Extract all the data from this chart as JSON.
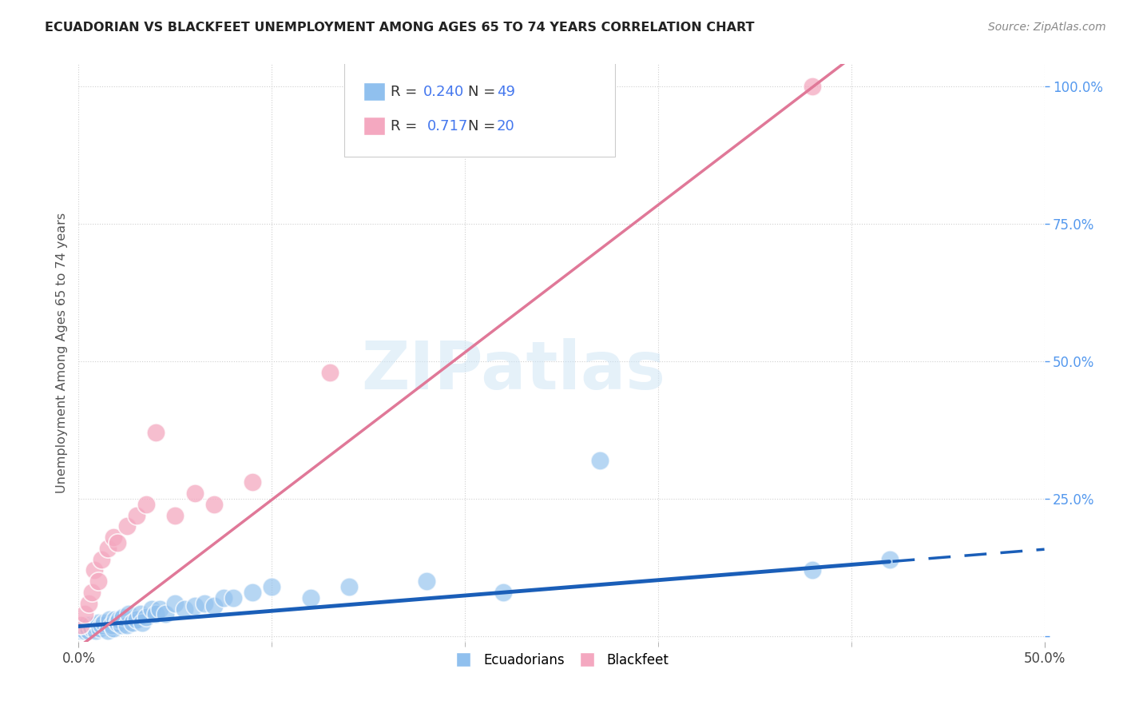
{
  "title": "ECUADORIAN VS BLACKFEET UNEMPLOYMENT AMONG AGES 65 TO 74 YEARS CORRELATION CHART",
  "source": "Source: ZipAtlas.com",
  "ylabel": "Unemployment Among Ages 65 to 74 years",
  "xlabel_ticks": [
    0.0,
    0.5
  ],
  "xlabel_labels": [
    "0.0%",
    "50.0%"
  ],
  "ylabel_right_ticks": [
    0.0,
    0.25,
    0.5,
    0.75,
    1.0
  ],
  "ylabel_right_labels": [
    "",
    "25.0%",
    "50.0%",
    "75.0%",
    "100.0%"
  ],
  "xmin": 0.0,
  "xmax": 0.5,
  "ymin": -0.01,
  "ymax": 1.04,
  "ecuadorians_color": "#90c0ee",
  "blackfeet_color": "#f4a8c0",
  "ecuadorians_R": 0.24,
  "ecuadorians_N": 49,
  "blackfeet_R": 0.717,
  "blackfeet_N": 20,
  "watermark": "ZIPatlas",
  "background_color": "#ffffff",
  "grid_color": "#d0d0d0",
  "blue_line_color": "#1a5eb8",
  "pink_line_color": "#e07898",
  "right_tick_color": "#5599ee",
  "title_color": "#222222",
  "source_color": "#888888",
  "ecuadorians_x": [
    0.001,
    0.002,
    0.003,
    0.004,
    0.005,
    0.006,
    0.007,
    0.008,
    0.009,
    0.01,
    0.011,
    0.012,
    0.013,
    0.015,
    0.016,
    0.017,
    0.018,
    0.019,
    0.02,
    0.021,
    0.022,
    0.023,
    0.025,
    0.026,
    0.028,
    0.03,
    0.032,
    0.033,
    0.035,
    0.038,
    0.04,
    0.042,
    0.045,
    0.05,
    0.055,
    0.06,
    0.065,
    0.07,
    0.075,
    0.08,
    0.09,
    0.1,
    0.12,
    0.14,
    0.18,
    0.22,
    0.27,
    0.38,
    0.42
  ],
  "ecuadorians_y": [
    0.01,
    0.015,
    0.01,
    0.02,
    0.01,
    0.02,
    0.015,
    0.02,
    0.01,
    0.025,
    0.015,
    0.02,
    0.025,
    0.01,
    0.03,
    0.02,
    0.015,
    0.03,
    0.025,
    0.03,
    0.02,
    0.035,
    0.02,
    0.04,
    0.025,
    0.03,
    0.04,
    0.025,
    0.035,
    0.05,
    0.04,
    0.05,
    0.04,
    0.06,
    0.05,
    0.055,
    0.06,
    0.055,
    0.07,
    0.07,
    0.08,
    0.09,
    0.07,
    0.09,
    0.1,
    0.08,
    0.32,
    0.12,
    0.14
  ],
  "blackfeet_x": [
    0.001,
    0.003,
    0.005,
    0.007,
    0.008,
    0.01,
    0.012,
    0.015,
    0.018,
    0.02,
    0.025,
    0.03,
    0.035,
    0.04,
    0.05,
    0.06,
    0.07,
    0.09,
    0.13,
    0.38
  ],
  "blackfeet_y": [
    0.02,
    0.04,
    0.06,
    0.08,
    0.12,
    0.1,
    0.14,
    0.16,
    0.18,
    0.17,
    0.2,
    0.22,
    0.24,
    0.37,
    0.22,
    0.26,
    0.24,
    0.28,
    0.48,
    1.0
  ],
  "ecu_line_intercept": 0.018,
  "ecu_line_slope": 0.28,
  "blk_line_intercept": -0.02,
  "blk_line_slope": 2.68
}
